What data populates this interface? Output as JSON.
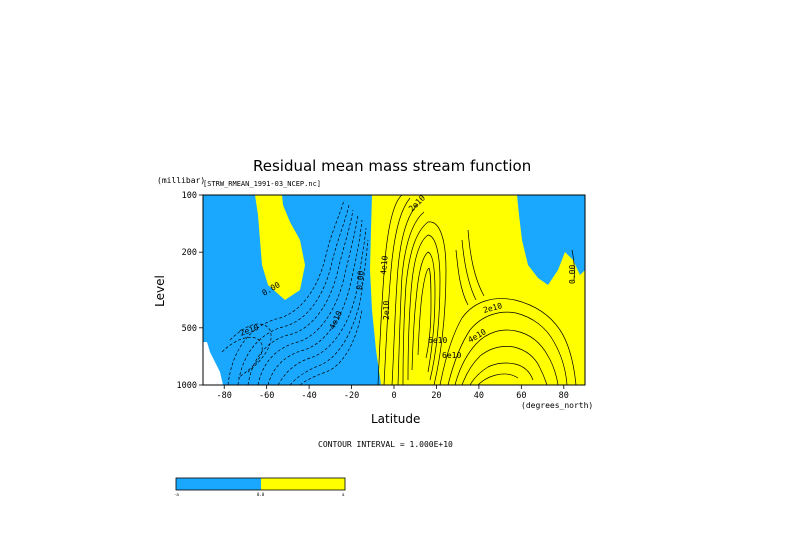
{
  "chart_data": {
    "type": "contour",
    "title": "Residual mean mass stream function",
    "source_file": "[STRW_RMEAN_1991-03_NCEP.nc]",
    "xlabel": "Latitude",
    "x_unit": "(degrees_north)",
    "ylabel": "Level",
    "y_unit": "(millibar)",
    "xlim": [
      -90,
      90
    ],
    "ylim": [
      1000,
      100
    ],
    "y_scale": "log",
    "x_ticks": [
      -80,
      -60,
      -40,
      -20,
      0,
      20,
      40,
      60,
      80
    ],
    "y_ticks": [
      100,
      200,
      500,
      1000
    ],
    "contour_interval_text": "CONTOUR INTERVAL = 1.000E+10",
    "contour_labels": [
      "0.00",
      "2e10",
      "4e10",
      "0.00",
      "2e10",
      "2e10",
      "4e10",
      "6e10",
      "2e10",
      "4e10",
      "6e10",
      "0.00"
    ],
    "fill_colors": {
      "negative": "#1aa8ff",
      "positive": "#ffff00"
    },
    "colorbar_labels": [
      "-a",
      "0.0",
      "a"
    ],
    "regions": [
      {
        "sign": "negative",
        "lat_range": [
          -90,
          -5
        ],
        "description": "Southern Hemisphere circulation cell"
      },
      {
        "sign": "positive",
        "lat_range": [
          -62,
          -44
        ],
        "level_range": [
          100,
          300
        ]
      },
      {
        "sign": "positive",
        "lat_range": [
          -5,
          65
        ],
        "description": "Northern Hemisphere circulation cell"
      },
      {
        "sign": "negative",
        "lat_range": [
          60,
          90
        ],
        "level_range": [
          100,
          250
        ]
      }
    ]
  }
}
